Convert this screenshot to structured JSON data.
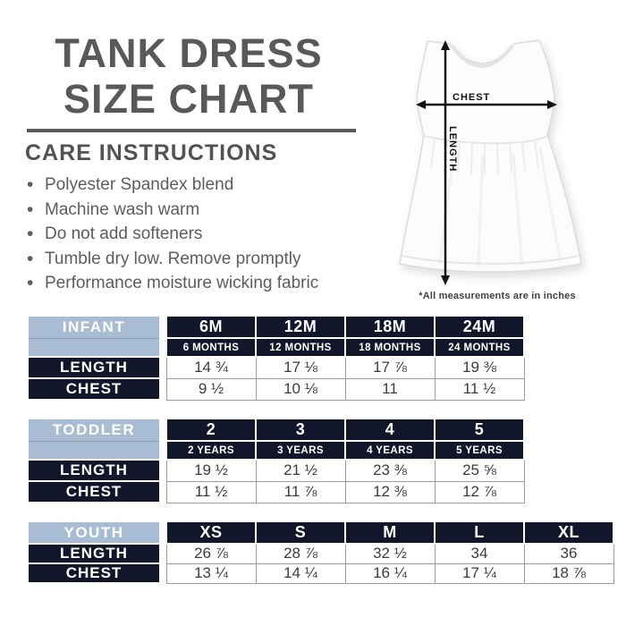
{
  "header": {
    "title_line1": "TANK DRESS",
    "title_line2": "SIZE CHART"
  },
  "care": {
    "heading": "CARE INSTRUCTIONS",
    "items": [
      "Polyester Spandex blend",
      "Machine wash warm",
      "Do not add softeners",
      "Tumble dry low. Remove promptly",
      "Performance moisture wicking fabric"
    ]
  },
  "diagram": {
    "chest_label": "CHEST",
    "length_label": "LENGTH",
    "footnote": "*All measurements are in inches"
  },
  "colors": {
    "title_gray": "#59595b",
    "text_gray": "#5d5d60",
    "header_blue": "#a8bdd4",
    "header_dark": "#11162a",
    "value_gray": "#3c3c3e",
    "cell_border_gray": "#9c9c9c",
    "arrow_black": "#141414"
  },
  "tables": [
    {
      "group": "INFANT",
      "sizes": [
        "6M",
        "12M",
        "18M",
        "24M"
      ],
      "size_sub": [
        "6 MONTHS",
        "12 MONTHS",
        "18 MONTHS",
        "24 MONTHS"
      ],
      "rows": [
        {
          "label": "LENGTH",
          "values": [
            "14 ¾",
            "17 ⅛",
            "17 ⅞",
            "19 ⅜"
          ]
        },
        {
          "label": "CHEST",
          "values": [
            "9 ½",
            "10 ⅛",
            "11",
            "11 ½"
          ]
        }
      ]
    },
    {
      "group": "TODDLER",
      "sizes": [
        "2",
        "3",
        "4",
        "5"
      ],
      "size_sub": [
        "2 YEARS",
        "3 YEARS",
        "4 YEARS",
        "5 YEARS"
      ],
      "rows": [
        {
          "label": "LENGTH",
          "values": [
            "19 ½",
            "21 ½",
            "23 ⅜",
            "25 ⅝"
          ]
        },
        {
          "label": "CHEST",
          "values": [
            "11 ½",
            "11 ⅞",
            "12 ⅜",
            "12 ⅞"
          ]
        }
      ]
    },
    {
      "group": "YOUTH",
      "sizes": [
        "XS",
        "S",
        "M",
        "L",
        "XL"
      ],
      "size_sub": null,
      "rows": [
        {
          "label": "LENGTH",
          "values": [
            "26 ⅞",
            "28 ⅞",
            "32 ½",
            "34",
            "36"
          ]
        },
        {
          "label": "CHEST",
          "values": [
            "13 ¼",
            "14 ¼",
            "16 ¼",
            "17 ¼",
            "18 ⅞"
          ]
        }
      ]
    }
  ]
}
